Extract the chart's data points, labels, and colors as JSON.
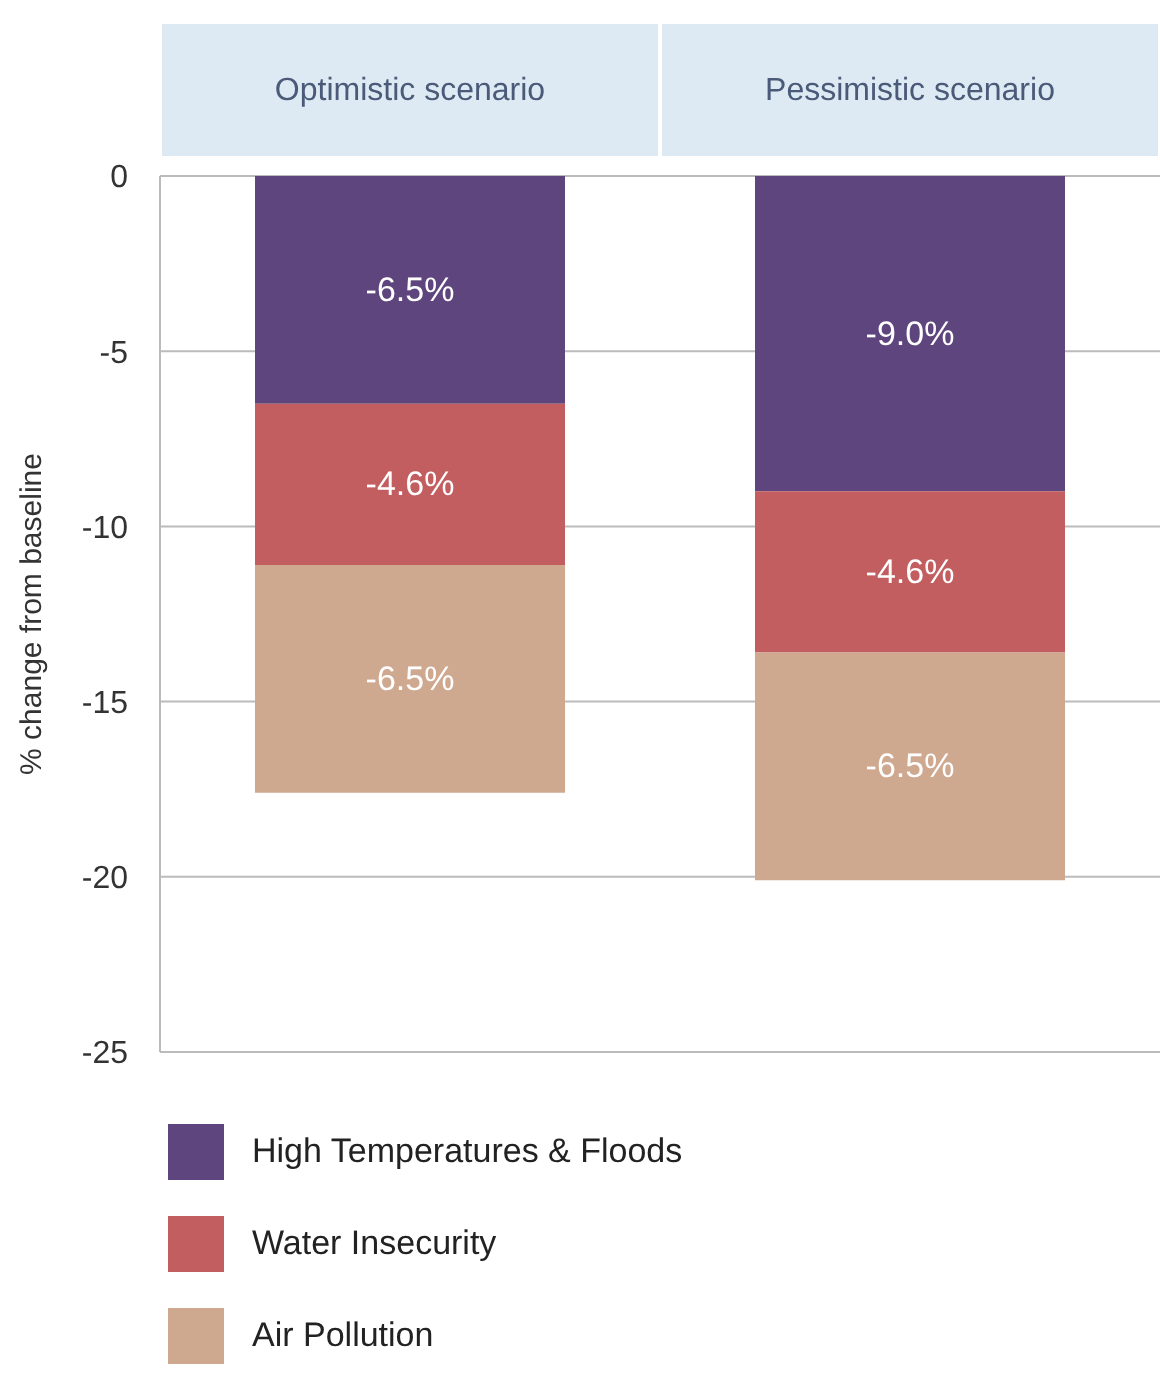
{
  "chart_data": {
    "type": "bar",
    "stacked": true,
    "ylabel": "% change from baseline",
    "categories": [
      "Optimistic scenario",
      "Pessimistic scenario"
    ],
    "series": [
      {
        "name": "High Temperatures & Floods",
        "color": "#5e457d",
        "values": [
          -6.5,
          -9.0
        ],
        "value_labels": [
          "-6.5%",
          "-9.0%"
        ]
      },
      {
        "name": "Water Insecurity",
        "color": "#c25d60",
        "values": [
          -4.6,
          -4.6
        ],
        "value_labels": [
          "-4.6%",
          "-4.6%"
        ]
      },
      {
        "name": "Air Pollution",
        "color": "#cfa890",
        "values": [
          -6.5,
          -6.5
        ],
        "value_labels": [
          "-6.5%",
          "-6.5%"
        ]
      }
    ],
    "ylim": [
      -25,
      0
    ],
    "yticks": [
      0,
      -5,
      -10,
      -15,
      -20,
      -25
    ],
    "grid": "y",
    "legend": "bottom"
  }
}
